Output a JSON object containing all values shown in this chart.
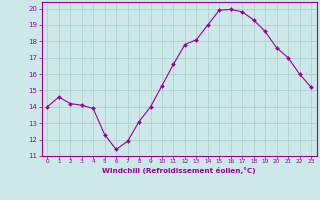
{
  "x": [
    0,
    1,
    2,
    3,
    4,
    5,
    6,
    7,
    8,
    9,
    10,
    11,
    12,
    13,
    14,
    15,
    16,
    17,
    18,
    19,
    20,
    21,
    22,
    23
  ],
  "y": [
    14.0,
    14.6,
    14.2,
    14.1,
    13.9,
    12.3,
    11.4,
    11.9,
    13.1,
    14.0,
    15.3,
    16.6,
    17.8,
    18.1,
    19.0,
    19.9,
    19.95,
    19.8,
    19.3,
    18.6,
    17.6,
    17.0,
    16.0,
    15.2
  ],
  "line_color": "#990099",
  "marker": "D",
  "marker_size": 2.0,
  "bg_color": "#cce8e8",
  "grid_color": "#aacccc",
  "xlabel": "Windchill (Refroidissement éolien,°C)",
  "tick_color": "#990099",
  "xlim": [
    -0.5,
    23.5
  ],
  "ylim": [
    11,
    20.4
  ],
  "yticks": [
    11,
    12,
    13,
    14,
    15,
    16,
    17,
    18,
    19,
    20
  ],
  "xticks": [
    0,
    1,
    2,
    3,
    4,
    5,
    6,
    7,
    8,
    9,
    10,
    11,
    12,
    13,
    14,
    15,
    16,
    17,
    18,
    19,
    20,
    21,
    22,
    23
  ]
}
